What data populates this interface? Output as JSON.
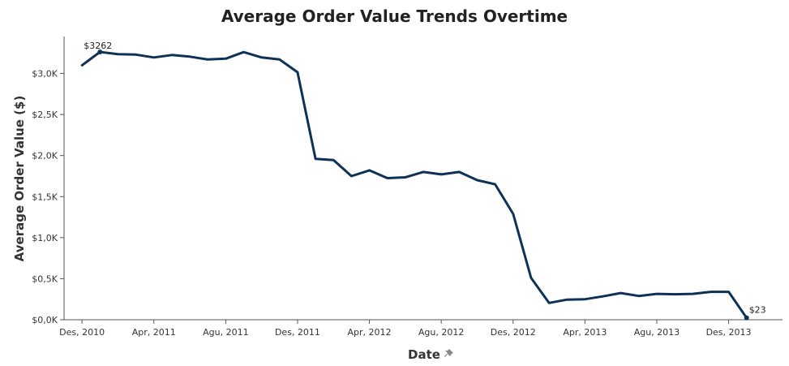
{
  "chart_data": {
    "type": "line",
    "title": "Average Order Value Trends Overtime",
    "xlabel": "Date",
    "ylabel": "Average Order Value ($)",
    "ylim": [
      0,
      3450
    ],
    "y_ticks": [
      0,
      500,
      1000,
      1500,
      2000,
      2500,
      3000
    ],
    "y_tick_labels": [
      "$0,0K",
      "$0,5K",
      "$1,0K",
      "$1,5K",
      "$2,0K",
      "$2,5K",
      "$3,0K"
    ],
    "x_ticks": [
      "2010-12",
      "2011-04",
      "2011-08",
      "2011-12",
      "2012-04",
      "2012-08",
      "2012-12",
      "2013-04",
      "2013-08",
      "2013-12"
    ],
    "x_tick_labels": [
      "Des, 2010",
      "Apr, 2011",
      "Agu, 2011",
      "Des, 2011",
      "Apr, 2012",
      "Agu, 2012",
      "Des, 2012",
      "Apr, 2013",
      "Agu, 2013",
      "Des, 2013"
    ],
    "xlim": [
      "2010-11",
      "2014-03"
    ],
    "grid": false,
    "legend": "none",
    "line_color": "#0e3257",
    "x": [
      "2010-12",
      "2011-01",
      "2011-02",
      "2011-03",
      "2011-04",
      "2011-05",
      "2011-06",
      "2011-07",
      "2011-08",
      "2011-09",
      "2011-10",
      "2011-11",
      "2011-12",
      "2012-01",
      "2012-02",
      "2012-03",
      "2012-04",
      "2012-05",
      "2012-06",
      "2012-07",
      "2012-08",
      "2012-09",
      "2012-10",
      "2012-11",
      "2012-12",
      "2013-01",
      "2013-02",
      "2013-03",
      "2013-04",
      "2013-05",
      "2013-06",
      "2013-07",
      "2013-08",
      "2013-09",
      "2013-10",
      "2013-11",
      "2013-12",
      "2014-01"
    ],
    "values": [
      3100,
      3262,
      3235,
      3230,
      3195,
      3225,
      3205,
      3170,
      3180,
      3260,
      3195,
      3170,
      3015,
      1960,
      1945,
      1750,
      1820,
      1725,
      1735,
      1800,
      1770,
      1800,
      1700,
      1650,
      1290,
      510,
      205,
      245,
      250,
      285,
      325,
      290,
      315,
      310,
      315,
      340,
      340,
      23
    ],
    "annotations": [
      {
        "label": "$3262",
        "index": 1
      },
      {
        "label": "$23",
        "index": 37
      }
    ]
  }
}
